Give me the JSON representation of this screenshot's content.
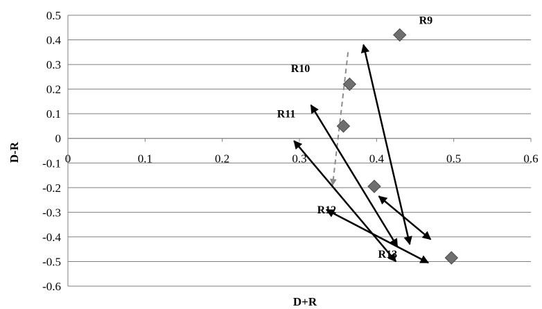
{
  "chart_data": {
    "type": "scatter",
    "xlabel": "D+R",
    "ylabel": "D-R",
    "xlim": [
      0,
      0.6
    ],
    "ylim": [
      -0.6,
      0.5
    ],
    "x_ticks": [
      "0",
      "0.1",
      "0.2",
      "0.3",
      "0.4",
      "0.5",
      "0.6"
    ],
    "y_ticks": [
      "0.5",
      "0.4",
      "0.3",
      "0.2",
      "0.1",
      "0",
      "-0.1",
      "-0.2",
      "-0.3",
      "-0.4",
      "-0.5",
      "-0.6"
    ],
    "grid": "horizontal",
    "points": [
      {
        "x": 0.43,
        "y": 0.42
      },
      {
        "x": 0.365,
        "y": 0.22
      },
      {
        "x": 0.357,
        "y": 0.05
      },
      {
        "x": 0.397,
        "y": -0.195
      },
      {
        "x": 0.497,
        "y": -0.485
      }
    ],
    "labels": [
      {
        "text": "R9",
        "x": 0.455,
        "y": 0.465
      },
      {
        "text": "R10",
        "x": 0.289,
        "y": 0.27
      },
      {
        "text": "R11",
        "x": 0.271,
        "y": 0.085
      },
      {
        "text": "R12",
        "x": 0.323,
        "y": -0.305
      },
      {
        "text": "R13",
        "x": 0.402,
        "y": -0.485
      }
    ],
    "arrows": [
      {
        "x1": 0.443,
        "y1": -0.43,
        "x2": 0.383,
        "y2": 0.38
      },
      {
        "x1": 0.427,
        "y1": -0.44,
        "x2": 0.315,
        "y2": 0.135
      },
      {
        "x1": 0.425,
        "y1": -0.5,
        "x2": 0.293,
        "y2": -0.01
      },
      {
        "x1": 0.467,
        "y1": -0.505,
        "x2": 0.335,
        "y2": -0.29
      },
      {
        "x1": 0.47,
        "y1": -0.41,
        "x2": 0.403,
        "y2": -0.235
      }
    ],
    "dashed_arrows": [
      {
        "x1": 0.363,
        "y1": 0.35,
        "x2": 0.343,
        "y2": -0.19
      }
    ],
    "colors": {
      "marker": "#6f6f6f",
      "marker_edge": "#4a4a4a",
      "arrow": "#000000",
      "dashed": "#8c8c8c",
      "grid": "#7f7f7f"
    }
  }
}
